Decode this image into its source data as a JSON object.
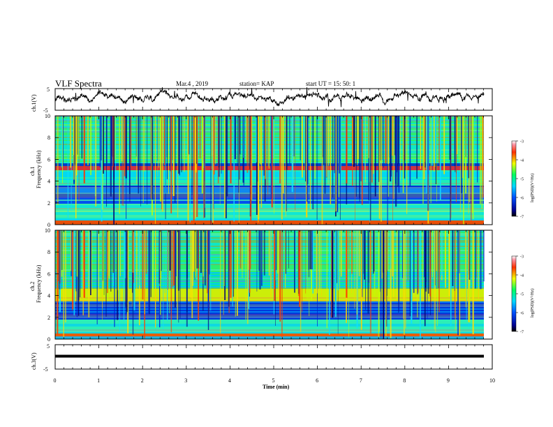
{
  "header": {
    "title": "VLF Spectra",
    "date": "Mar.4 , 2019",
    "station": "station= KAP",
    "start": "start UT = 15: 50: 1"
  },
  "chart_data": [
    {
      "type": "line",
      "name": "ch1-waveform",
      "ylabel": "ch.1(V)",
      "ylim": [
        -5,
        5
      ],
      "xlim": [
        0,
        10
      ],
      "yticks": [
        "5",
        "-5"
      ]
    },
    {
      "type": "heatmap",
      "name": "ch1-spectrogram",
      "ylabel": "ch.1\nFrequency (kHz)",
      "ylabel_line1": "ch.1",
      "ylabel_line2": "Frequency (kHz)",
      "ylim": [
        0,
        10
      ],
      "yticks": [
        "0",
        "2",
        "4",
        "6",
        "8",
        "10"
      ],
      "colorbar": {
        "label": "log(PSD)(V²/Hz)",
        "range": [
          -7,
          -3
        ],
        "ticks": [
          "-3",
          "-4",
          "-5",
          "-6",
          "-7"
        ]
      }
    },
    {
      "type": "heatmap",
      "name": "ch2-spectrogram",
      "ylabel_line1": "ch.2",
      "ylabel_line2": "Frequency (kHz)",
      "ylim": [
        0,
        10
      ],
      "yticks": [
        "0",
        "2",
        "4",
        "6",
        "8",
        "10"
      ],
      "colorbar": {
        "label": "log(PSD)(V²/Hz)",
        "range": [
          -7,
          -3
        ],
        "ticks": [
          "-3",
          "-4",
          "-5",
          "-6",
          "-7"
        ]
      }
    },
    {
      "type": "line",
      "name": "ch3-waveform",
      "ylabel": "ch.3(V)",
      "ylim": [
        -5,
        5
      ],
      "yticks": [
        "5",
        "-5"
      ],
      "xlabel": "Time (min)",
      "xlim": [
        0,
        10
      ],
      "xticks": [
        "0",
        "1",
        "2",
        "3",
        "4",
        "5",
        "6",
        "7",
        "8",
        "9",
        "10"
      ],
      "level": 0.0
    }
  ]
}
